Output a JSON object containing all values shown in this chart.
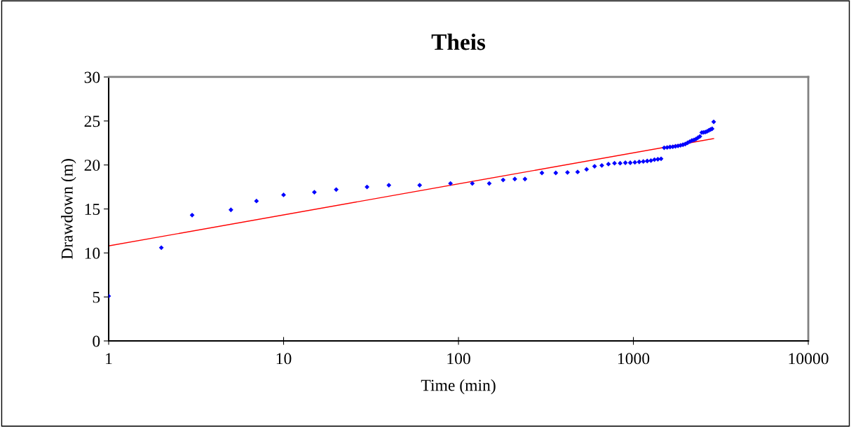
{
  "chart_data": {
    "type": "scatter",
    "title": "Theis",
    "xlabel": "Time (min)",
    "ylabel": "Drawdown (m)",
    "log": "x",
    "xlim": [
      1,
      10000
    ],
    "xticks": [
      1,
      10,
      100,
      1000,
      10000
    ],
    "ylim": [
      0,
      30
    ],
    "yticks": [
      0,
      5,
      10,
      15,
      20,
      25,
      30
    ],
    "grid": false,
    "series": [
      {
        "color": "#0000ff",
        "marker": "diamond",
        "x": [
          1,
          2,
          3,
          5,
          7,
          10,
          15,
          20,
          30,
          40,
          60,
          90,
          120,
          150,
          180,
          210,
          240,
          300,
          360,
          420,
          480,
          540,
          600,
          660,
          720,
          780,
          840,
          900,
          960,
          1020,
          1080,
          1140,
          1200,
          1260,
          1320,
          1380,
          1440,
          1500,
          1560,
          1620,
          1680,
          1740,
          1800,
          1860,
          1920,
          1980,
          2040,
          2100,
          2160,
          2220,
          2280,
          2340,
          2400,
          2460,
          2520,
          2580,
          2640,
          2700,
          2760,
          2820,
          2880
        ],
        "values": [
          5.1,
          10.6,
          14.3,
          14.9,
          15.9,
          16.6,
          16.9,
          17.2,
          17.5,
          17.7,
          17.7,
          17.9,
          17.9,
          17.9,
          18.3,
          18.4,
          18.4,
          19.1,
          19.1,
          19.15,
          19.2,
          19.5,
          19.85,
          19.95,
          20.1,
          20.2,
          20.2,
          20.25,
          20.25,
          20.3,
          20.35,
          20.4,
          20.45,
          20.5,
          20.6,
          20.65,
          20.7,
          21.96,
          21.99,
          22.04,
          22.07,
          22.12,
          22.17,
          22.23,
          22.3,
          22.38,
          22.52,
          22.65,
          22.78,
          22.84,
          22.95,
          23.1,
          23.24,
          23.69,
          23.71,
          23.74,
          23.82,
          23.93,
          24.03,
          24.11,
          24.9
        ]
      },
      {
        "type": "line",
        "marker": "none",
        "color": "#ff0000",
        "x": [
          1,
          2880
        ],
        "values": [
          10.8,
          23.0
        ]
      }
    ]
  }
}
